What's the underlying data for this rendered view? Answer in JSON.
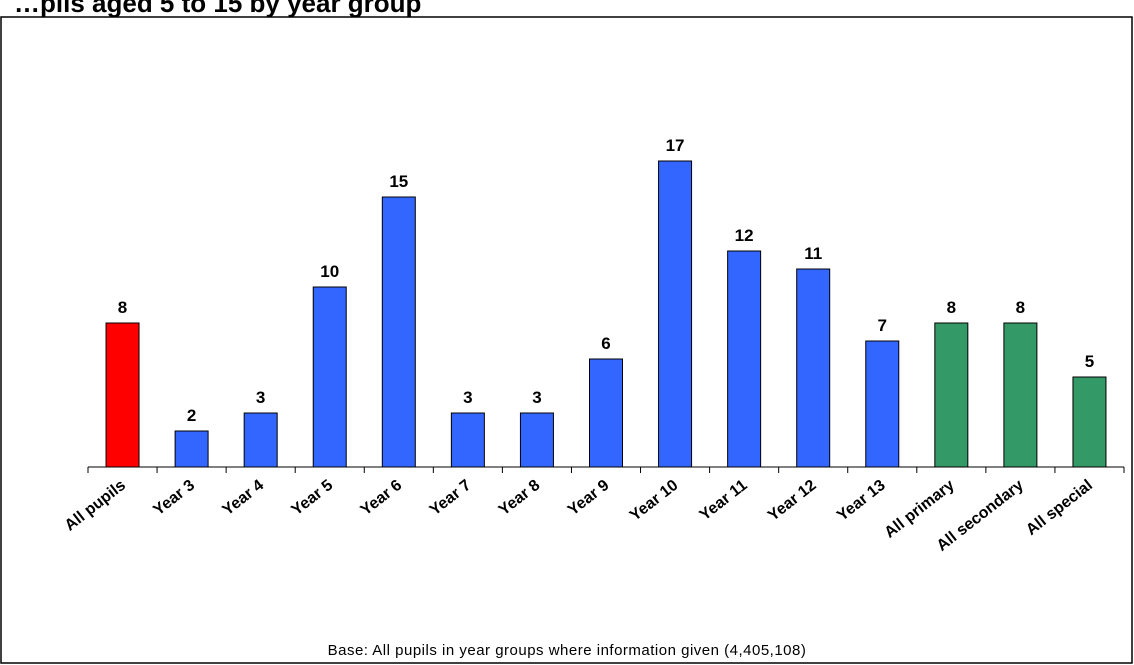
{
  "chart_data": {
    "type": "bar",
    "title": "…pils aged 5 to 15 by year group",
    "categories": [
      "All pupils",
      "Year 3",
      "Year 4",
      "Year 5",
      "Year 6",
      "Year 7",
      "Year 8",
      "Year 9",
      "Year 10",
      "Year 11",
      "Year 12",
      "Year 13",
      "All primary",
      "All secondary",
      "All special"
    ],
    "values": [
      8,
      2,
      3,
      10,
      15,
      3,
      3,
      6,
      17,
      12,
      11,
      7,
      8,
      8,
      5
    ],
    "value_labels": [
      "8",
      "2",
      "3",
      "10",
      "15",
      "3",
      "3",
      "6",
      "17",
      "12",
      "11",
      "7",
      "8",
      "8",
      "5"
    ],
    "bar_colors": [
      "#ff0000",
      "#3366ff",
      "#3366ff",
      "#3366ff",
      "#3366ff",
      "#3366ff",
      "#3366ff",
      "#3366ff",
      "#3366ff",
      "#3366ff",
      "#3366ff",
      "#3366ff",
      "#339966",
      "#339966",
      "#339966"
    ],
    "ylim": [
      0,
      25
    ],
    "xlabel": "",
    "ylabel": "",
    "grid": false,
    "legend": "none",
    "note": "Base: All pupils in year groups where information given (4,405,108)"
  },
  "colors": {
    "all_pupils": "#ff0000",
    "year_groups": "#3366ff",
    "school_types": "#339966",
    "border": "#000000"
  }
}
